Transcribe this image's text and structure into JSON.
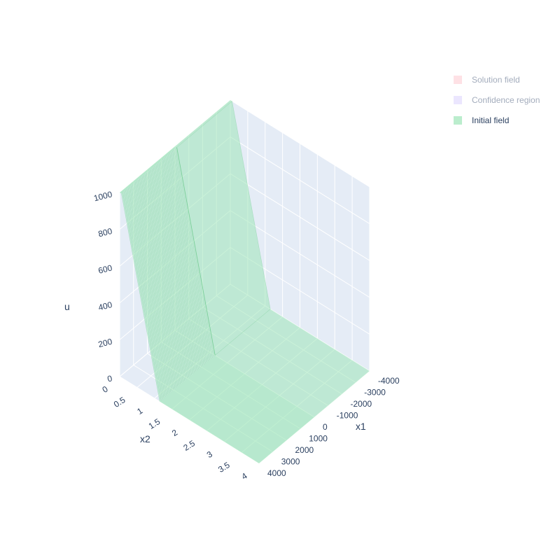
{
  "chart_data": {
    "type": "surface",
    "axes": {
      "x1": {
        "label": "x1",
        "range": [
          -4000,
          4000
        ],
        "ticks": [
          "-4000",
          "-3000",
          "-2000",
          "-1000",
          "0",
          "1000",
          "2000",
          "3000",
          "4000"
        ]
      },
      "x2": {
        "label": "x2",
        "range": [
          0,
          4
        ],
        "ticks": [
          "0",
          "0.5",
          "1",
          "1.5",
          "2",
          "2.5",
          "3",
          "3.5",
          "4"
        ]
      },
      "u": {
        "label": "u",
        "range": [
          0,
          1000
        ],
        "ticks": [
          "0",
          "200",
          "400",
          "600",
          "800",
          "1000"
        ]
      }
    },
    "grid": true,
    "legend_position": "top-right",
    "series": [
      {
        "name": "Solution field",
        "color": "#fecdd3",
        "visible": false
      },
      {
        "name": "Confidence region",
        "color": "#ddd6fe",
        "visible": false
      },
      {
        "name": "Initial field",
        "color": "#9ee6b8",
        "visible": true,
        "surface": {
          "x1": [
            -4000,
            0,
            4000
          ],
          "x2_step": [
            0.05,
            1.15
          ],
          "u_low": 0,
          "u_high": 1000
        }
      }
    ]
  },
  "colors": {
    "scene_bg": "#e5ecf6",
    "gridline": "#ffffff",
    "surface": "#9ee6b8",
    "surface_edge": "#6cc98c",
    "text": "#2a3f5f",
    "legend_hidden_text": "#a3acbc"
  }
}
